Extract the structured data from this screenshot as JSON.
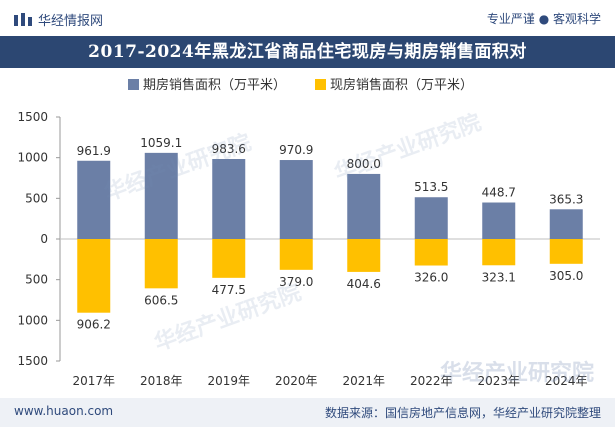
{
  "header": {
    "brand": "华经情报网",
    "slogan_a": "专业严谨",
    "slogan_b": "客观科学"
  },
  "watermark": "华经产业研究院",
  "chart_data": {
    "type": "bar",
    "title": "2017-2024年黑龙江省商品住宅现房与期房销售面积对",
    "categories": [
      "2017年",
      "2018年",
      "2019年",
      "2020年",
      "2021年",
      "2022年",
      "2023年",
      "2024年"
    ],
    "series": [
      {
        "name": "期房销售面积（万平米）",
        "values": [
          961.9,
          1059.1,
          983.6,
          970.9,
          800.0,
          513.5,
          448.7,
          365.3
        ],
        "color": "#6b7fa6",
        "labels": [
          "961.9",
          "1059.1",
          "983.6",
          "970.9",
          "800.0",
          "513.5",
          "448.7",
          "365.3"
        ]
      },
      {
        "name": "现房销售面积（万平米）",
        "values": [
          906.2,
          606.5,
          477.5,
          379.0,
          404.6,
          326.0,
          323.1,
          305.0
        ],
        "color": "#ffc000",
        "labels": [
          "906.2",
          "606.5",
          "477.5",
          "379.0",
          "404.6",
          "326.0",
          "323.1",
          "305.0"
        ]
      }
    ],
    "yticks": [
      "1500",
      "1000",
      "500",
      "0",
      "500",
      "1000",
      "1500"
    ],
    "ylim": [
      -1500,
      1500
    ],
    "xlabel": "",
    "ylabel": ""
  },
  "footer": {
    "website": "www.huaon.com",
    "source": "数据来源：国信房地产信息网，华经产业研究院整理"
  }
}
